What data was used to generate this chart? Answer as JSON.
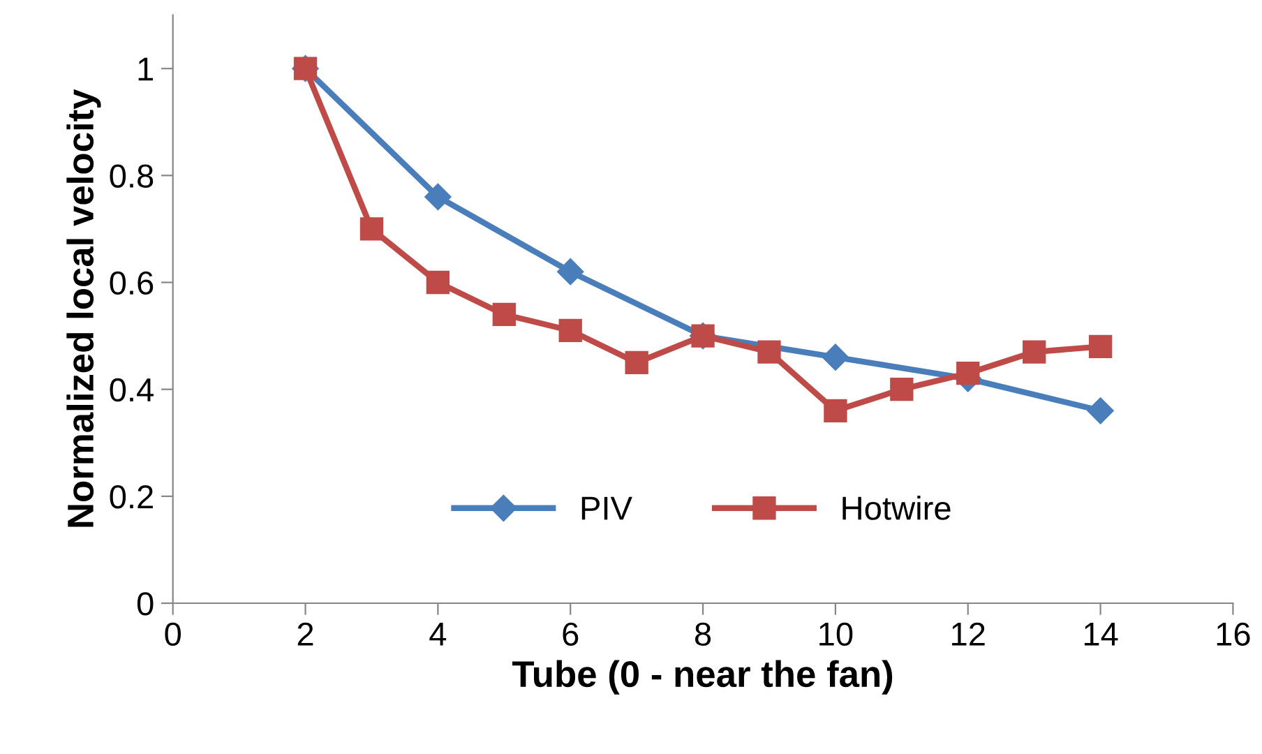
{
  "chart_data": {
    "type": "line",
    "xlabel": "Tube (0 - near the fan)",
    "ylabel": "Normalized local velocity",
    "xlim": [
      0,
      16
    ],
    "xticks": [
      0,
      2,
      4,
      6,
      8,
      10,
      12,
      14,
      16
    ],
    "ylim": [
      0,
      1.1
    ],
    "yticks": [
      0,
      0.2,
      0.4,
      0.6,
      0.8,
      1
    ],
    "grid": false,
    "legend": "bottom",
    "line_style": "solid",
    "series": [
      {
        "name": "PIV",
        "color": "#4a7ebb",
        "marker": "diamond",
        "x": [
          2,
          4,
          6,
          8,
          10,
          12,
          14
        ],
        "values": [
          1.0,
          0.76,
          0.62,
          0.5,
          0.46,
          0.42,
          0.36
        ]
      },
      {
        "name": "Hotwire",
        "color": "#be4b48",
        "marker": "square",
        "x": [
          2,
          3,
          4,
          5,
          6,
          7,
          8,
          9,
          10,
          11,
          12,
          13,
          14
        ],
        "values": [
          1.0,
          0.7,
          0.6,
          0.54,
          0.51,
          0.45,
          0.5,
          0.47,
          0.36,
          0.4,
          0.43,
          0.47,
          0.48
        ]
      }
    ]
  }
}
